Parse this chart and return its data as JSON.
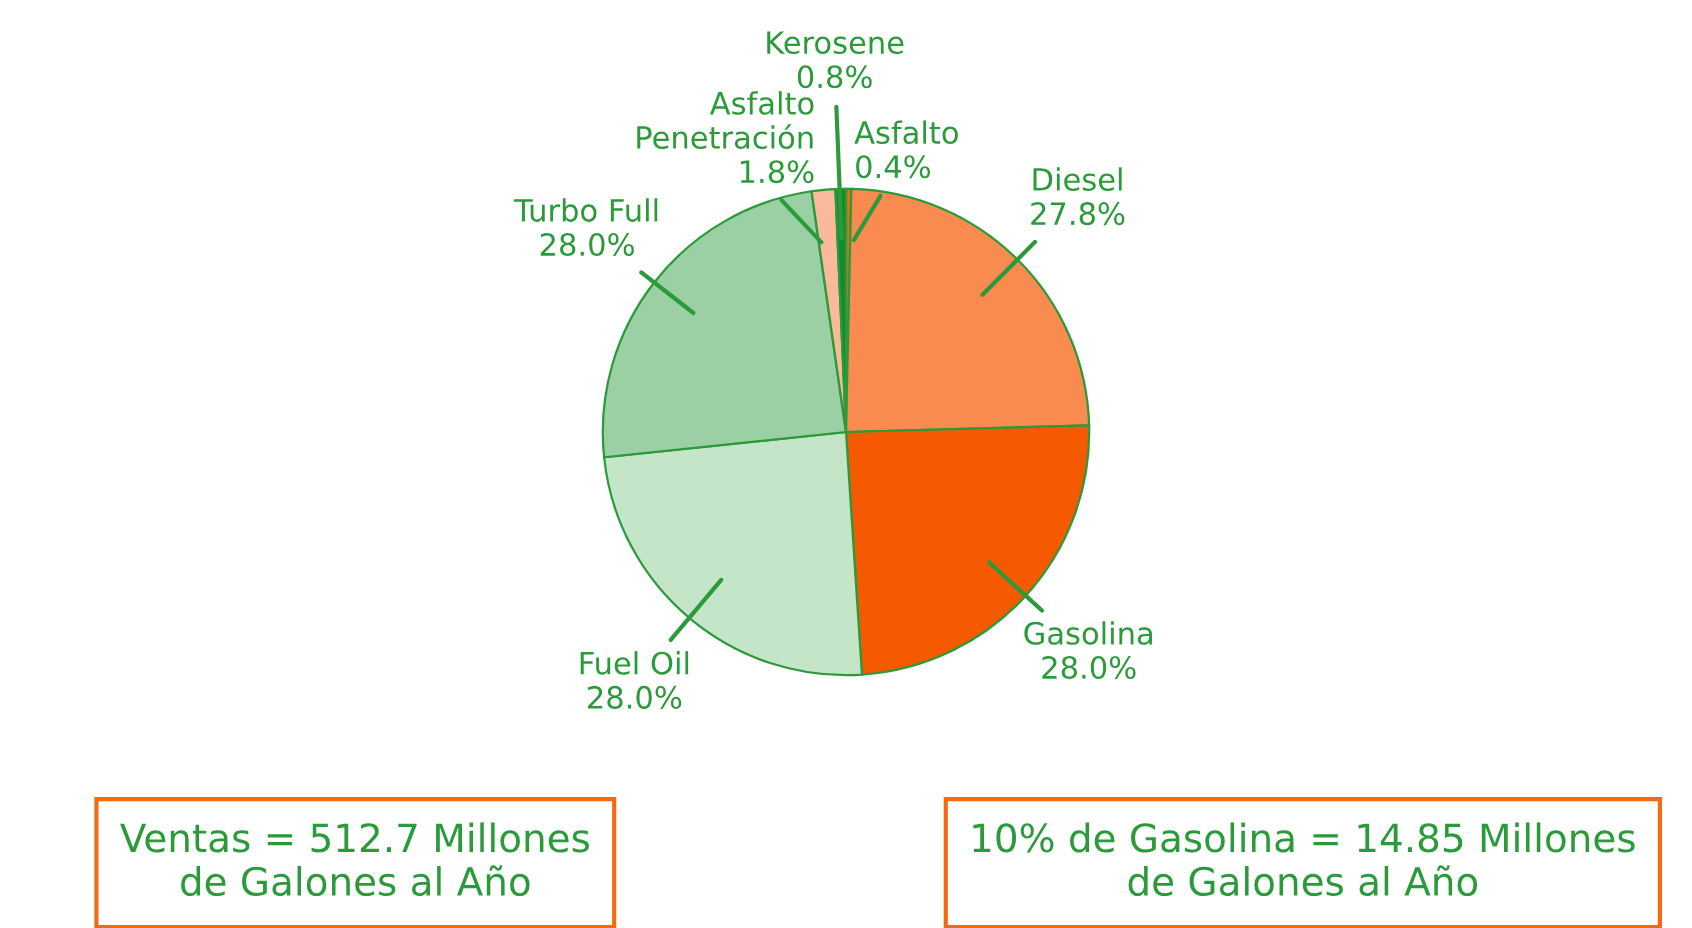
{
  "chart_data": {
    "type": "pie",
    "categories": [
      "Asfalto",
      "Diesel",
      "Gasolina",
      "Fuel Oil",
      "Turbo Full",
      "Asfalto\nPenetración",
      "Kerosene"
    ],
    "values": [
      0.4,
      27.8,
      28.0,
      28.0,
      28.0,
      1.8,
      0.8
    ],
    "value_labels": [
      "0.4%",
      "27.8%",
      "28.0%",
      "28.0%",
      "28.0%",
      "1.8%",
      "0.8%"
    ],
    "colors": [
      "#f56a10",
      "#f98b50",
      "#f55a00",
      "#c5e5c8",
      "#9bd0a5",
      "#f9b99a",
      "#128b30"
    ],
    "annotations": [
      "Ventas = 512.7 Millones\nde Galones al Año",
      "10% de Gasolina = 14.85 Millones\nde Galones al Año"
    ]
  }
}
